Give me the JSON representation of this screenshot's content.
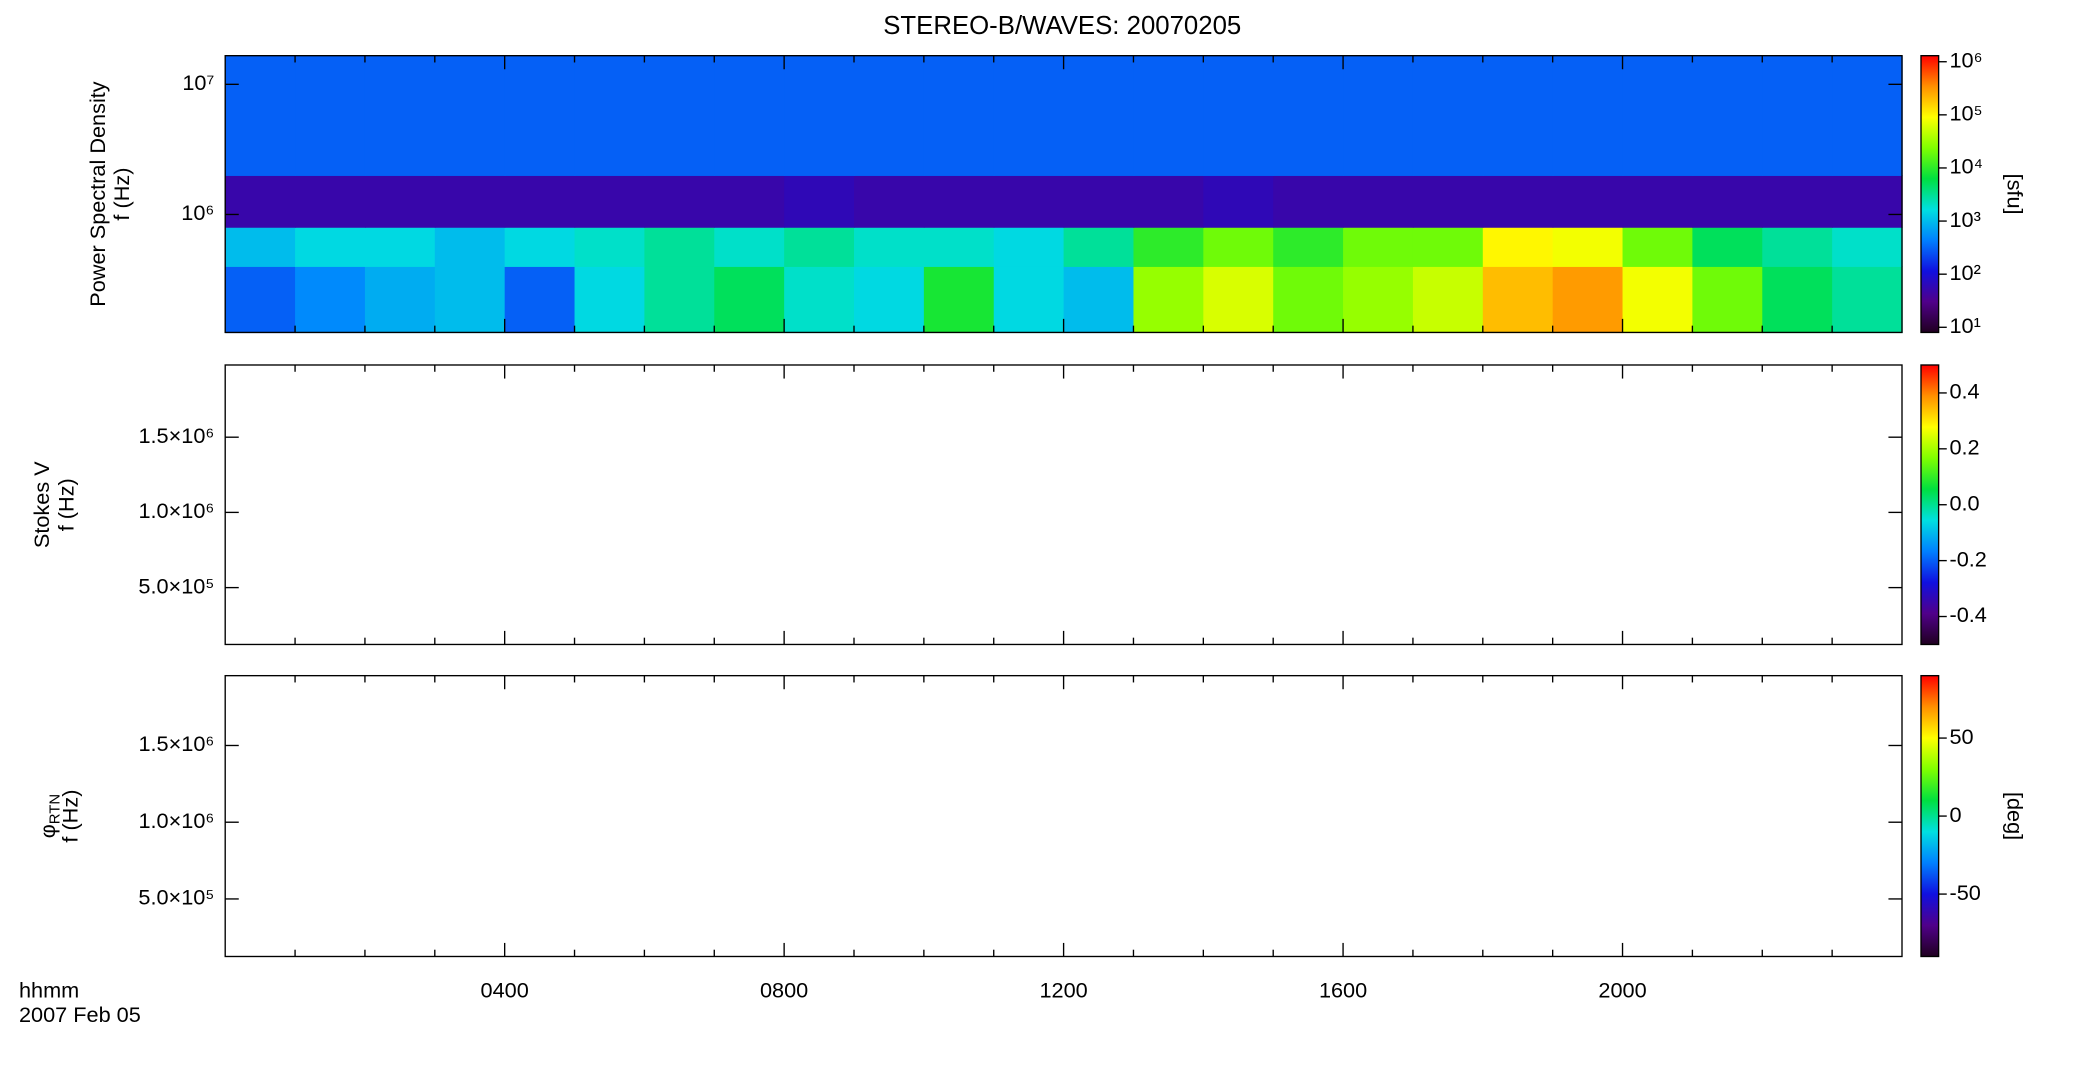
{
  "chart_data": [
    {
      "type": "heatmap",
      "title": "STEREO-B/WAVES: 20070205",
      "ylabel": [
        "Power Spectral Density",
        "f (Hz)"
      ],
      "ylog": true,
      "ylim": [
        124000,
        16600000
      ],
      "yticks": [
        {
          "value": 1000000,
          "label": "10⁶"
        },
        {
          "value": 10000000,
          "label": "10⁷"
        }
      ],
      "xbins": [
        0,
        1,
        2,
        3,
        4,
        5,
        6,
        7,
        8,
        9,
        10,
        11,
        12,
        13,
        14,
        15,
        16,
        17,
        18,
        19,
        20,
        21,
        22,
        23,
        24
      ],
      "ybins": [
        124000,
        400000,
        800000,
        2000000,
        16600000
      ],
      "z": [
        [
          300,
          500,
          800,
          1000,
          300,
          1500,
          3000,
          5000,
          2000,
          1500,
          8000,
          1500,
          1000,
          30000,
          60000,
          20000,
          30000,
          50000,
          200000,
          300000,
          80000,
          20000,
          5000,
          3000
        ],
        [
          1000,
          1500,
          1500,
          1000,
          1500,
          2000,
          3000,
          2000,
          3000,
          2000,
          2000,
          1500,
          3000,
          10000,
          20000,
          10000,
          20000,
          20000,
          100000,
          80000,
          20000,
          5000,
          3000,
          2000
        ],
        [
          50,
          50,
          50,
          50,
          50,
          50,
          50,
          50,
          60,
          50,
          50,
          50,
          50,
          50,
          60,
          50,
          50,
          50,
          50,
          50,
          50,
          50,
          50,
          50
        ],
        [
          300,
          300,
          300,
          300,
          300,
          300,
          300,
          300,
          300,
          300,
          300,
          300,
          300,
          300,
          300,
          300,
          300,
          300,
          300,
          300,
          300,
          300,
          300,
          300
        ]
      ],
      "clog": true,
      "clim": [
        8,
        1300000
      ],
      "cticks": [
        {
          "value": 10,
          "label": "10¹"
        },
        {
          "value": 100,
          "label": "10²"
        },
        {
          "value": 1000,
          "label": "10³"
        },
        {
          "value": 10000,
          "label": "10⁴"
        },
        {
          "value": 100000,
          "label": "10⁵"
        },
        {
          "value": 1000000,
          "label": "10⁶"
        }
      ],
      "clabel": "[sfu]",
      "colormap": [
        "#200020",
        "#50008a",
        "#1010e0",
        "#0080ff",
        "#00e0e0",
        "#00e040",
        "#80ff00",
        "#ffff00",
        "#ff9000",
        "#ff0000"
      ]
    },
    {
      "type": "heatmap",
      "ylabel": [
        "Stokes V",
        "f (Hz)"
      ],
      "ylog": false,
      "ylim": [
        122000,
        1980000
      ],
      "yticks": [
        {
          "value": 500000,
          "label": "5.0×10⁵"
        },
        {
          "value": 1000000,
          "label": "1.0×10⁶"
        },
        {
          "value": 1500000,
          "label": "1.5×10⁶"
        }
      ],
      "clog": false,
      "clim": [
        -0.5,
        0.5
      ],
      "cticks": [
        -0.4,
        -0.2,
        {
          "value": 0,
          "label": "0.0"
        },
        0.2,
        0.4
      ],
      "colormap": [
        "#200020",
        "#50008a",
        "#1010e0",
        "#0080ff",
        "#00e0e0",
        "#00e040",
        "#80ff00",
        "#ffff00",
        "#ff9000",
        "#ff0000"
      ]
    },
    {
      "type": "heatmap",
      "ylabel": {
        "symbol": "φ",
        "subscript": "RTN",
        "unit": "f (Hz)"
      },
      "ylog": false,
      "ylim": [
        125000,
        1955000
      ],
      "yticks": [
        {
          "value": 500000,
          "label": "5.0×10⁵"
        },
        {
          "value": 1000000,
          "label": "1.0×10⁶"
        },
        {
          "value": 1500000,
          "label": "1.5×10⁶"
        }
      ],
      "clog": false,
      "clim": [
        -90,
        90
      ],
      "cticks": [
        -50,
        0,
        50
      ],
      "clabel": "[deg]",
      "colormap": [
        "#200020",
        "#50008a",
        "#1010e0",
        "#0080ff",
        "#00e0e0",
        "#00e040",
        "#80ff00",
        "#ffff00",
        "#ff9000",
        "#ff0000"
      ],
      "xlim": [
        0,
        24
      ],
      "xticks": [
        {
          "value": 4,
          "label": "0400"
        },
        {
          "value": 8,
          "label": "0800"
        },
        {
          "value": 12,
          "label": "1200"
        },
        {
          "value": 16,
          "label": "1600"
        },
        {
          "value": 20,
          "label": "2000"
        }
      ],
      "xminorticks": [
        1,
        2,
        3,
        5,
        6,
        7,
        9,
        10,
        11,
        13,
        14,
        15,
        17,
        18,
        19,
        21,
        22,
        23
      ],
      "xlabel": [
        "hhmm",
        "2007 Feb 05"
      ]
    }
  ]
}
